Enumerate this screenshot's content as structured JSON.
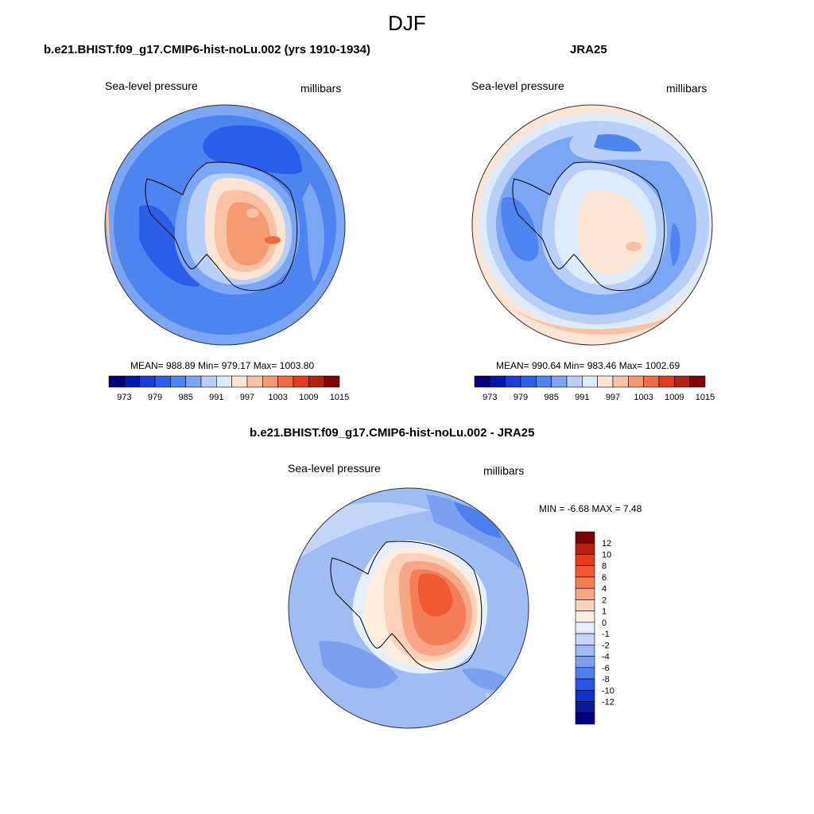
{
  "main_title": "DJF",
  "panels": [
    {
      "title": "b.e21.BHIST.f09_g17.CMIP6-hist-noLu.002 (yrs 1910-1934)",
      "left_label": "Sea-level pressure",
      "right_label": "millibars",
      "stats": "MEAN= 988.89  Min= 979.17  Max= 1003.80",
      "colorbar_ticks": [
        "973",
        "979",
        "985",
        "991",
        "997",
        "1003",
        "1009",
        "1015"
      ]
    },
    {
      "title": "JRA25",
      "left_label": "Sea-level pressure",
      "right_label": "millibars",
      "stats": "MEAN= 990.64  Min= 983.46  Max= 1002.69",
      "colorbar_ticks": [
        "973",
        "979",
        "985",
        "991",
        "997",
        "1003",
        "1009",
        "1015"
      ]
    },
    {
      "title": "b.e21.BHIST.f09_g17.CMIP6-hist-noLu.002 - JRA25",
      "left_label": "Sea-level pressure",
      "right_label": "millibars",
      "stats": "MIN =  -6.68 MAX =   7.48",
      "colorbar_ticks": [
        "12",
        "10",
        "8",
        "6",
        "4",
        "2",
        "1",
        "0",
        "-1",
        "-2",
        "-4",
        "-6",
        "-8",
        "-10",
        "-12"
      ]
    }
  ],
  "colors": {
    "abs_palette": [
      "#00007f",
      "#0018a8",
      "#1a3fd8",
      "#2a5ee8",
      "#4d84f0",
      "#7aa6f4",
      "#b7cff9",
      "#deebfb",
      "#fde5d6",
      "#f9c2a5",
      "#f59b74",
      "#f06a43",
      "#e33b1c",
      "#b8200e",
      "#7f0000"
    ],
    "diff_palette": [
      "#7f0000",
      "#b8200e",
      "#e33b1c",
      "#f05a30",
      "#f47e58",
      "#f7a785",
      "#fbd1b9",
      "#fdeede",
      "#e6effc",
      "#c4d6f8",
      "#9fbcf3",
      "#7aa0ef",
      "#4f7fee",
      "#2a55e6",
      "#1030c8",
      "#0a1a9a",
      "#00007f"
    ]
  }
}
